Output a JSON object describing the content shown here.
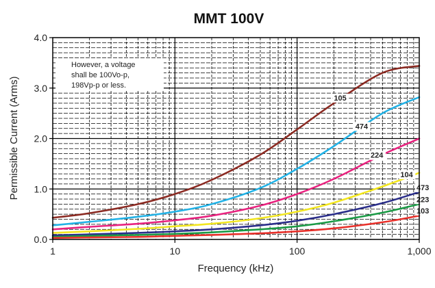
{
  "chart_data": {
    "type": "line",
    "title": "MMT 100V",
    "xlabel": "Frequency (kHz)",
    "ylabel": "Permissible Current (Arms)",
    "x_scale": "log",
    "xlim": [
      1,
      1000
    ],
    "ylim": [
      0,
      4.0
    ],
    "x_ticks": [
      {
        "value": 1,
        "label": "1"
      },
      {
        "value": 10,
        "label": "10"
      },
      {
        "value": 100,
        "label": "100"
      },
      {
        "value": 1000,
        "label": "1,000"
      }
    ],
    "y_ticks": [
      {
        "value": 0,
        "label": "0.0"
      },
      {
        "value": 1,
        "label": "1.0"
      },
      {
        "value": 2,
        "label": "2.0"
      },
      {
        "value": 3,
        "label": "3.0"
      },
      {
        "value": 4,
        "label": "4.0"
      }
    ],
    "grid": true,
    "annotation": [
      "However, a voltage",
      "shall be 100Vo-p,",
      "198Vp-p or less."
    ],
    "series": [
      {
        "name": "105",
        "color": "#8b2a22",
        "x": [
          1,
          2,
          5,
          10,
          20,
          50,
          100,
          200,
          500,
          1000
        ],
        "y": [
          0.43,
          0.52,
          0.7,
          0.9,
          1.18,
          1.68,
          2.18,
          2.7,
          3.3,
          3.44
        ]
      },
      {
        "name": "474",
        "color": "#22b2e6",
        "x": [
          1,
          2,
          5,
          10,
          20,
          50,
          100,
          200,
          500,
          1000
        ],
        "y": [
          0.28,
          0.35,
          0.45,
          0.55,
          0.7,
          1.02,
          1.4,
          1.85,
          2.5,
          2.82
        ]
      },
      {
        "name": "224",
        "color": "#e8237f",
        "x": [
          1,
          2,
          5,
          10,
          20,
          50,
          100,
          200,
          500,
          1000
        ],
        "y": [
          0.2,
          0.25,
          0.31,
          0.38,
          0.47,
          0.67,
          0.9,
          1.2,
          1.68,
          2.0
        ]
      },
      {
        "name": "104",
        "color": "#f2e620",
        "x": [
          1,
          2,
          5,
          10,
          20,
          50,
          100,
          200,
          500,
          1000
        ],
        "y": [
          0.13,
          0.16,
          0.21,
          0.26,
          0.31,
          0.42,
          0.55,
          0.73,
          1.05,
          1.32
        ]
      },
      {
        "name": "473",
        "color": "#2b2e8a",
        "x": [
          1,
          2,
          5,
          10,
          20,
          50,
          100,
          200,
          500,
          1000
        ],
        "y": [
          0.08,
          0.1,
          0.13,
          0.16,
          0.2,
          0.28,
          0.37,
          0.5,
          0.72,
          0.94
        ]
      },
      {
        "name": "223",
        "color": "#1a9a45",
        "x": [
          1,
          2,
          5,
          10,
          20,
          50,
          100,
          200,
          500,
          1000
        ],
        "y": [
          0.05,
          0.07,
          0.09,
          0.11,
          0.14,
          0.2,
          0.26,
          0.36,
          0.53,
          0.7
        ]
      },
      {
        "name": "103",
        "color": "#e8302a",
        "x": [
          1,
          2,
          5,
          10,
          20,
          50,
          100,
          200,
          500,
          1000
        ],
        "y": [
          0.03,
          0.04,
          0.05,
          0.07,
          0.09,
          0.12,
          0.16,
          0.22,
          0.34,
          0.47
        ]
      }
    ]
  }
}
